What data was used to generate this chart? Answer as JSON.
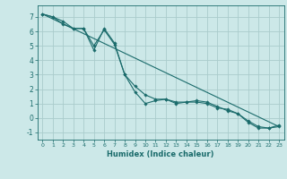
{
  "title": "",
  "xlabel": "Humidex (Indice chaleur)",
  "bg_color": "#cce8e8",
  "grid_color": "#aacccc",
  "line_color": "#1a6b6b",
  "xlim": [
    -0.5,
    23.5
  ],
  "ylim": [
    -1.5,
    7.8
  ],
  "yticks": [
    -1,
    0,
    1,
    2,
    3,
    4,
    5,
    6,
    7
  ],
  "xticks": [
    0,
    1,
    2,
    3,
    4,
    5,
    6,
    7,
    8,
    9,
    10,
    11,
    12,
    13,
    14,
    15,
    16,
    17,
    18,
    19,
    20,
    21,
    22,
    23
  ],
  "line1_x": [
    0,
    1,
    2,
    3,
    4,
    5,
    6,
    7,
    8,
    9,
    10,
    11,
    12,
    13,
    14,
    15,
    16,
    17,
    18,
    19,
    20,
    21,
    22,
    23
  ],
  "line1_y": [
    7.2,
    7.0,
    6.7,
    6.2,
    6.2,
    4.7,
    6.2,
    5.2,
    3.0,
    1.8,
    1.0,
    1.2,
    1.3,
    1.0,
    1.1,
    1.1,
    1.0,
    0.7,
    0.6,
    0.3,
    -0.3,
    -0.7,
    -0.7,
    -0.6
  ],
  "line2_x": [
    0,
    1,
    2,
    3,
    4,
    5,
    6,
    7,
    8,
    9,
    10,
    11,
    12,
    13,
    14,
    15,
    16,
    17,
    18,
    19,
    20,
    21,
    22,
    23
  ],
  "line2_y": [
    7.2,
    7.0,
    6.5,
    6.2,
    6.2,
    5.0,
    6.1,
    5.1,
    3.0,
    2.2,
    1.6,
    1.3,
    1.3,
    1.1,
    1.1,
    1.2,
    1.1,
    0.8,
    0.5,
    0.3,
    -0.2,
    -0.6,
    -0.7,
    -0.5
  ],
  "line3_x": [
    0,
    23
  ],
  "line3_y": [
    7.2,
    -0.6
  ]
}
